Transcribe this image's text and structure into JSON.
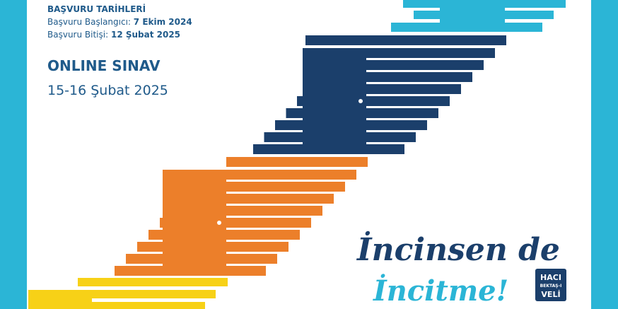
{
  "info": {
    "heading": "BAŞVURU TARİHLERİ",
    "start_label": "Başvuru Başlangıcı:",
    "start_date": "7 Ekim 2024",
    "end_label": "Başvuru Bitişi:",
    "end_date": "12 Şubat 2025"
  },
  "exam": {
    "title": "ONLINE SINAV",
    "date": "15-16 Şubat 2025"
  },
  "slogan": {
    "line1": "İncinsen de",
    "line2": "İncitme!"
  },
  "logo": {
    "line1": "HACI",
    "line2": "BEKTAŞ-I",
    "line3": "VELİ"
  }
}
